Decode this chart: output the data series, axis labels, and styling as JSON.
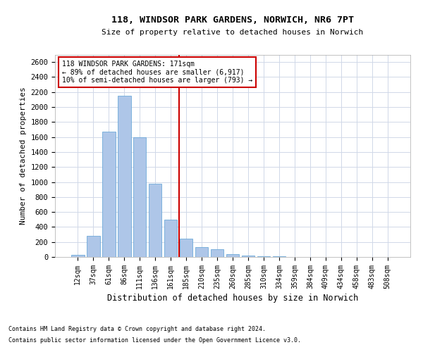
{
  "title1": "118, WINDSOR PARK GARDENS, NORWICH, NR6 7PT",
  "title2": "Size of property relative to detached houses in Norwich",
  "xlabel": "Distribution of detached houses by size in Norwich",
  "ylabel": "Number of detached properties",
  "categories": [
    "12sqm",
    "37sqm",
    "61sqm",
    "86sqm",
    "111sqm",
    "136sqm",
    "161sqm",
    "185sqm",
    "210sqm",
    "235sqm",
    "260sqm",
    "285sqm",
    "310sqm",
    "334sqm",
    "359sqm",
    "384sqm",
    "409sqm",
    "434sqm",
    "458sqm",
    "483sqm",
    "508sqm"
  ],
  "values": [
    30,
    280,
    1670,
    2150,
    1600,
    975,
    500,
    245,
    130,
    100,
    35,
    20,
    10,
    5,
    2,
    2,
    2,
    1,
    1,
    1,
    1
  ],
  "bar_color": "#aec6e8",
  "bar_edge_color": "#5a9fd4",
  "vline_x": 6.55,
  "annotation_line1": "118 WINDSOR PARK GARDENS: 171sqm",
  "annotation_line2": "← 89% of detached houses are smaller (6,917)",
  "annotation_line3": "10% of semi-detached houses are larger (793) →",
  "vline_color": "#cc0000",
  "box_color": "#cc0000",
  "ylim": [
    0,
    2700
  ],
  "yticks": [
    0,
    200,
    400,
    600,
    800,
    1000,
    1200,
    1400,
    1600,
    1800,
    2000,
    2200,
    2400,
    2600
  ],
  "footer1": "Contains HM Land Registry data © Crown copyright and database right 2024.",
  "footer2": "Contains public sector information licensed under the Open Government Licence v3.0.",
  "background_color": "#ffffff",
  "grid_color": "#d0d8e8"
}
